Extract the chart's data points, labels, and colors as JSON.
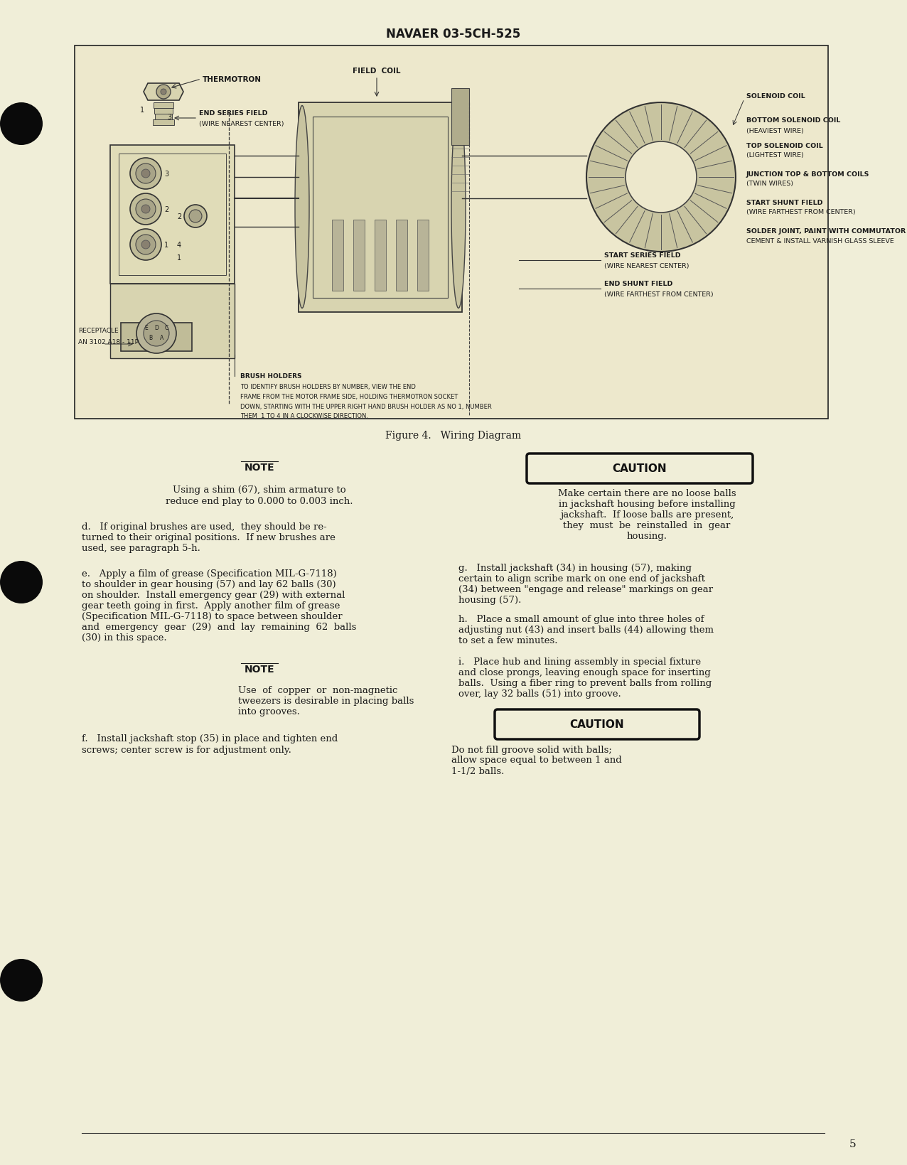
{
  "page_bg_color": "#f0eed8",
  "header_text": "NAVAER 03-5CH-525",
  "figure_caption": "Figure 4.   Wiring Diagram",
  "page_number": "5",
  "note1_title": "NOTE",
  "note1_line1": "Using a shim (67), shim armature to",
  "note1_line2": "reduce end play to 0.000 to 0.003 inch.",
  "caution1_title": "CAUTION",
  "caution1_lines": [
    "Make certain there are no loose balls",
    "in jackshaft housing before installing",
    "jackshaft.  If loose balls are present,",
    "they  must  be  reinstalled  in  gear",
    "housing."
  ],
  "para_d_lines": [
    "d.   If original brushes are used,  they should be re-",
    "turned to their original positions.  If new brushes are",
    "used, see paragraph 5-h."
  ],
  "para_e_lines": [
    "e.   Apply a film of grease (Specification MIL-G-7118)",
    "to shoulder in gear housing (57) and lay 62 balls (30)",
    "on shoulder.  Install emergency gear (29) with external",
    "gear teeth going in first.  Apply another film of grease",
    "(Specification MIL-G-7118) to space between shoulder",
    "and  emergency  gear  (29)  and  lay  remaining  62  balls",
    "(30) in this space."
  ],
  "note2_title": "NOTE",
  "note2_lines": [
    "Use  of  copper  or  non-magnetic",
    "tweezers is desirable in placing balls",
    "into grooves."
  ],
  "para_f_lines": [
    "f.   Install jackshaft stop (35) in place and tighten end",
    "screws; center screw is for adjustment only."
  ],
  "para_g_lines": [
    "g.   Install jackshaft (34) in housing (57), making",
    "certain to align scribe mark on one end of jackshaft",
    "(34) between \"engage and release\" markings on gear",
    "housing (57)."
  ],
  "para_h_lines": [
    "h.   Place a small amount of glue into three holes of",
    "adjusting nut (43) and insert balls (44) allowing them",
    "to set a few minutes."
  ],
  "para_i_lines": [
    "i.   Place hub and lining assembly in special fixture",
    "and close prongs, leaving enough space for inserting",
    "balls.  Using a fiber ring to prevent balls from rolling",
    "over, lay 32 balls (51) into groove."
  ],
  "caution2_title": "CAUTION",
  "caution2_lines": [
    "Do not fill groove solid with balls;",
    "allow space equal to between 1 and",
    "1-1/2 balls."
  ],
  "text_color": "#1a1a1a",
  "body_fontsize": 9.5,
  "note_body_fontsize": 9.5
}
